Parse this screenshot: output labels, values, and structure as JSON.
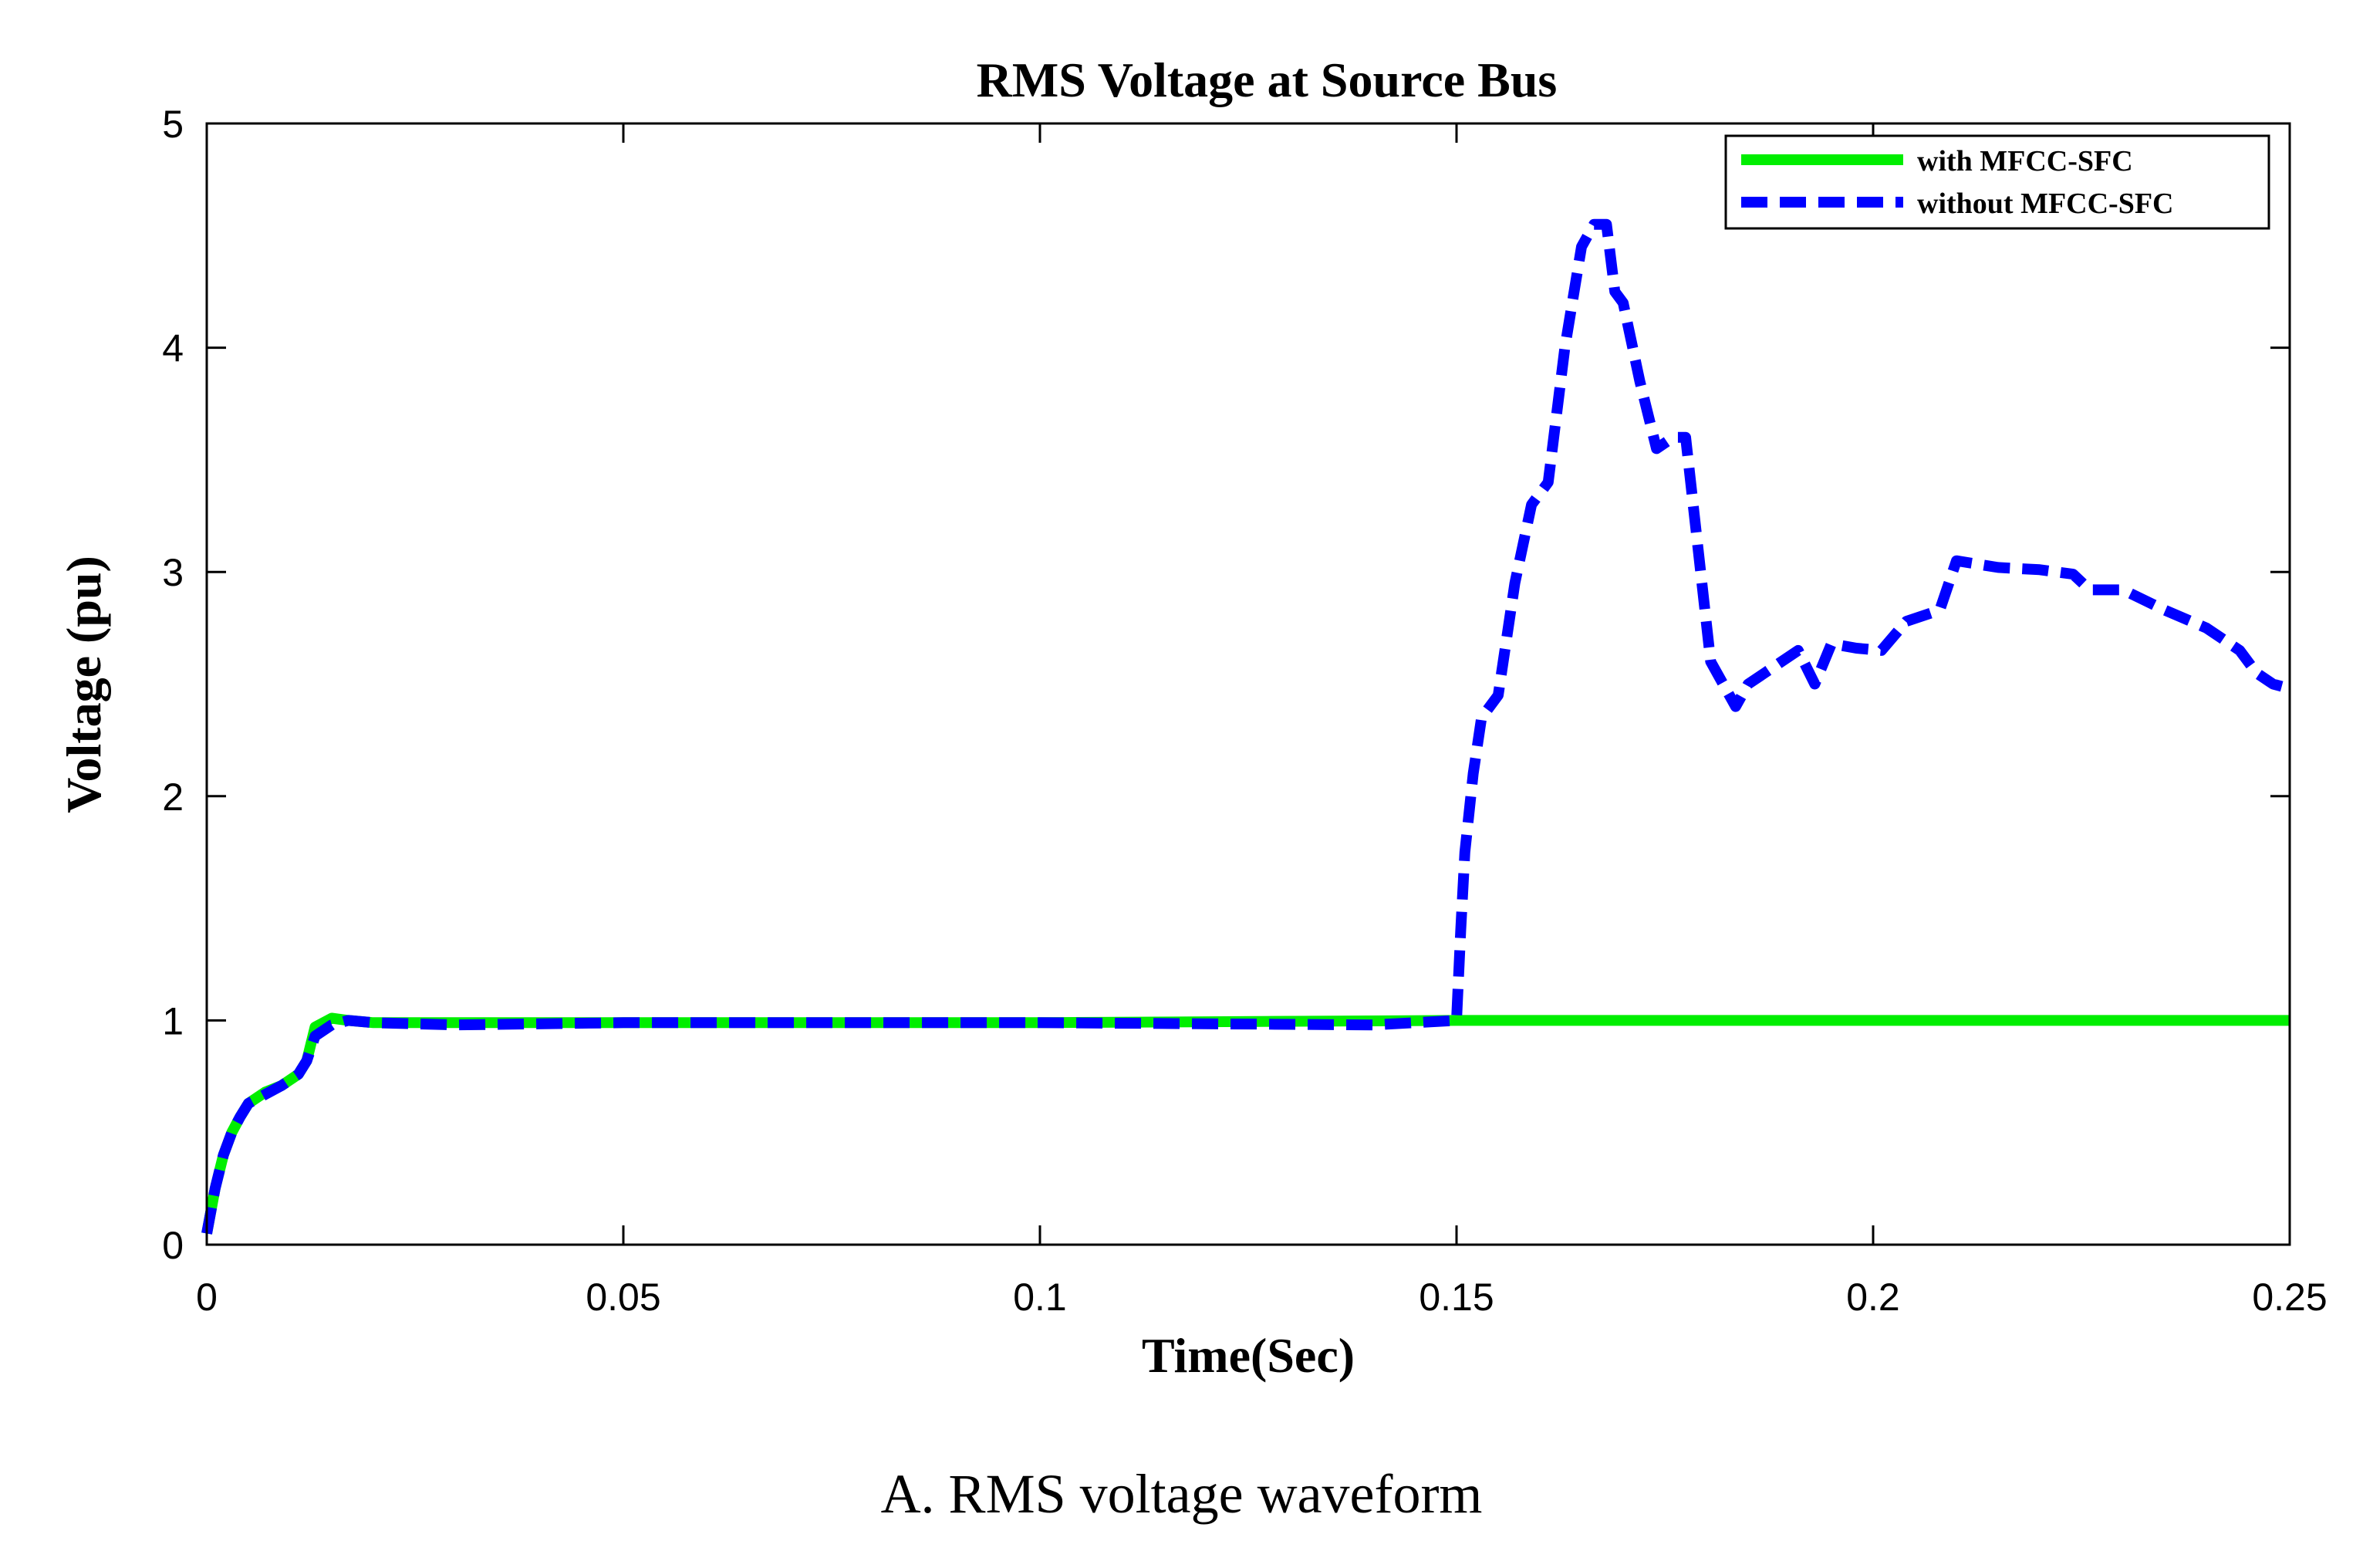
{
  "chart_data": {
    "type": "line",
    "title": "RMS Voltage at Source Bus",
    "xlabel": "Time(Sec)",
    "ylabel": "Voltage (pu)",
    "xlim": [
      0,
      0.25
    ],
    "ylim": [
      0,
      5
    ],
    "xticks": [
      0,
      0.05,
      0.1,
      0.15,
      0.2,
      0.25
    ],
    "xtick_labels": [
      "0",
      "0.05",
      "0.1",
      "0.15",
      "0.2",
      "0.25"
    ],
    "yticks": [
      0,
      1,
      2,
      3,
      4,
      5
    ],
    "ytick_labels": [
      "0",
      "1",
      "2",
      "3",
      "4",
      "5"
    ],
    "grid": false,
    "legend_position": "top-right",
    "series": [
      {
        "name": "with MFCC-SFC",
        "color": "#00ee00",
        "style": "solid",
        "x": [
          0,
          0.001,
          0.002,
          0.003,
          0.004,
          0.005,
          0.007,
          0.009,
          0.011,
          0.012,
          0.013,
          0.015,
          0.017,
          0.02,
          0.03,
          0.05,
          0.1,
          0.15,
          0.2,
          0.25
        ],
        "y": [
          0.05,
          0.25,
          0.4,
          0.5,
          0.57,
          0.63,
          0.68,
          0.71,
          0.76,
          0.82,
          0.97,
          1.01,
          1.0,
          0.99,
          0.99,
          0.99,
          0.99,
          1.0,
          1.0,
          1.0
        ]
      },
      {
        "name": "without MFCC-SFC",
        "color": "#0000ff",
        "style": "dashed",
        "x": [
          0,
          0.001,
          0.002,
          0.003,
          0.004,
          0.005,
          0.007,
          0.009,
          0.011,
          0.012,
          0.013,
          0.015,
          0.017,
          0.02,
          0.03,
          0.05,
          0.1,
          0.14,
          0.15,
          0.1505,
          0.151,
          0.152,
          0.153,
          0.155,
          0.157,
          0.159,
          0.161,
          0.163,
          0.165,
          0.1665,
          0.168,
          0.169,
          0.17,
          0.172,
          0.174,
          0.176,
          0.1775,
          0.179,
          0.1805,
          0.182,
          0.1835,
          0.185,
          0.187,
          0.189,
          0.191,
          0.193,
          0.195,
          0.198,
          0.201,
          0.204,
          0.208,
          0.21,
          0.215,
          0.22,
          0.224,
          0.226,
          0.23,
          0.235,
          0.24,
          0.244,
          0.246,
          0.248,
          0.25
        ],
        "y": [
          0.05,
          0.25,
          0.4,
          0.5,
          0.57,
          0.63,
          0.67,
          0.71,
          0.76,
          0.82,
          0.93,
          0.98,
          1.0,
          0.99,
          0.98,
          0.99,
          0.99,
          0.98,
          1.0,
          1.4,
          1.75,
          2.1,
          2.35,
          2.45,
          2.95,
          3.3,
          3.4,
          4.0,
          4.45,
          4.55,
          4.55,
          4.25,
          4.2,
          3.85,
          3.55,
          3.6,
          3.6,
          3.1,
          2.6,
          2.5,
          2.4,
          2.5,
          2.55,
          2.6,
          2.65,
          2.5,
          2.68,
          2.66,
          2.65,
          2.78,
          2.83,
          3.05,
          3.02,
          3.01,
          2.99,
          2.92,
          2.92,
          2.83,
          2.75,
          2.65,
          2.55,
          2.5,
          2.48
        ]
      }
    ]
  },
  "caption": "A. RMS voltage waveform"
}
